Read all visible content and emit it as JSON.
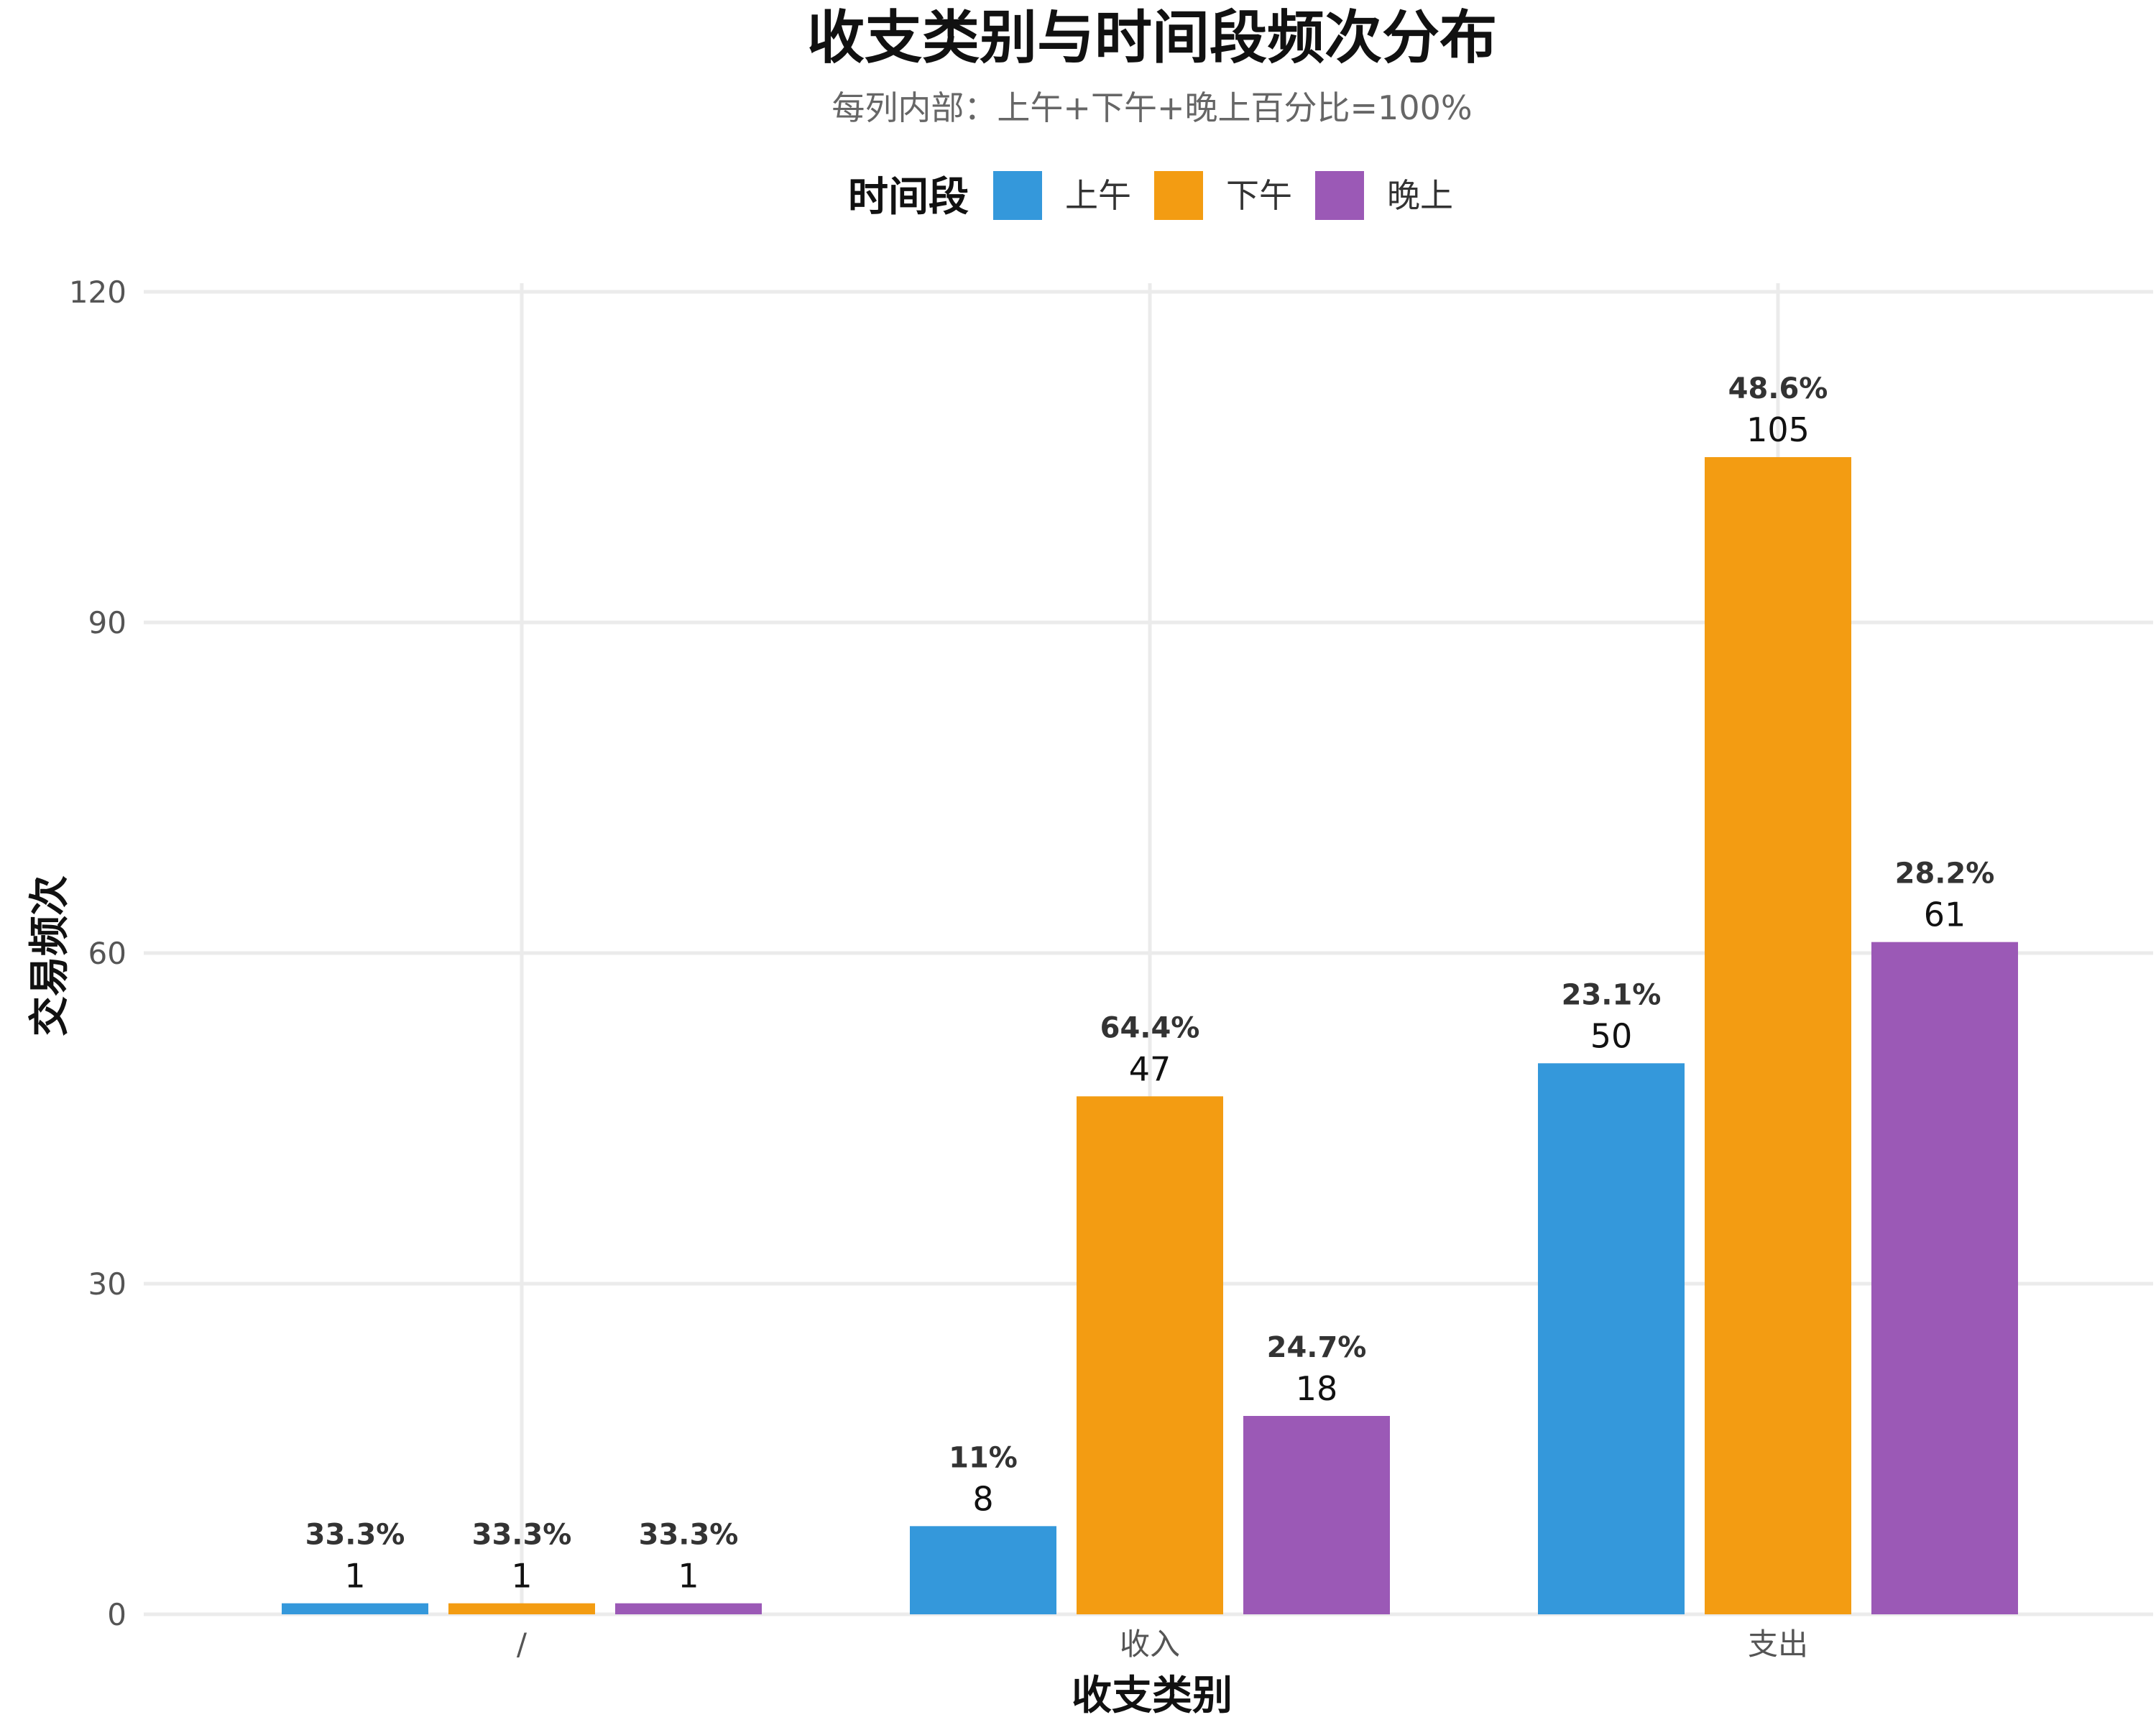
{
  "chart_data": {
    "type": "bar",
    "title": "收支类别与时间段频次分布",
    "subtitle": "每列内部：上午+下午+晚上百分比=100%",
    "xlabel": "收支类别",
    "ylabel": "交易频次",
    "legend_title": "时间段",
    "legend_position": "top",
    "grid": true,
    "categories": [
      "/",
      "收入",
      "支出"
    ],
    "ylim": [
      0,
      120
    ],
    "yticks": [
      "0",
      "30",
      "60",
      "90",
      "120"
    ],
    "series": [
      {
        "name": "上午",
        "color": "#3498db",
        "values": [
          1,
          8,
          50
        ],
        "pct_labels": [
          "33.3%",
          "11%",
          "23.1%"
        ]
      },
      {
        "name": "下午",
        "color": "#f39c12",
        "values": [
          1,
          47,
          105
        ],
        "pct_labels": [
          "33.3%",
          "64.4%",
          "48.6%"
        ]
      },
      {
        "name": "晚上",
        "color": "#9b59b6",
        "values": [
          1,
          18,
          61
        ],
        "pct_labels": [
          "33.3%",
          "24.7%",
          "28.2%"
        ]
      }
    ]
  }
}
